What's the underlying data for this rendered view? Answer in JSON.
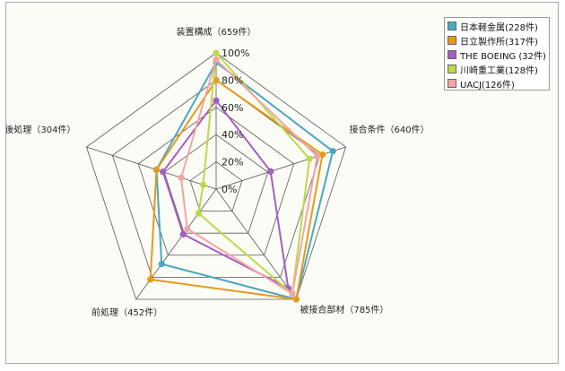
{
  "chart_data": {
    "type": "radar",
    "axes": [
      "装置構成（659件）",
      "接合条件（640件）",
      "被接合部材（785件）",
      "前処理（452件）",
      "後処理（304件）"
    ],
    "ticks": [
      "0%",
      "20%",
      "40%",
      "60%",
      "80%",
      "100%"
    ],
    "range": [
      0,
      100
    ],
    "grid": true,
    "legend_position": "top-right",
    "series": [
      {
        "name": "日本軽金属(228件)",
        "color": "#4aa8bf",
        "values": [
          93,
          90,
          100,
          68,
          46
        ]
      },
      {
        "name": "日立製作所(317件)",
        "color": "#e49b1a",
        "values": [
          80,
          82,
          100,
          82,
          46
        ]
      },
      {
        "name": "THE BOEING (32件)",
        "color": "#a65ec0",
        "values": [
          65,
          42,
          90,
          41,
          41
        ]
      },
      {
        "name": "川崎重工業(128件)",
        "color": "#bcd94a",
        "values": [
          100,
          72,
          95,
          22,
          10
        ]
      },
      {
        "name": "UACJ(126件)",
        "color": "#f4a4a6",
        "values": [
          95,
          78,
          95,
          36,
          27
        ]
      }
    ]
  }
}
